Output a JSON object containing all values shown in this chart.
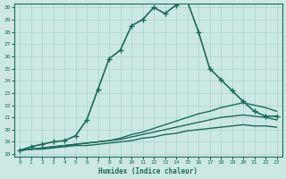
{
  "xlabel": "Humidex (Indice chaleur)",
  "ylabel": "",
  "bg_color": "#cce8e4",
  "grid_color": "#aad4ce",
  "line_color": "#1a6b5a",
  "xlim_min": -0.5,
  "xlim_max": 23.5,
  "ylim_min": 17.8,
  "ylim_max": 30.3,
  "yticks": [
    18,
    19,
    20,
    21,
    22,
    23,
    24,
    25,
    26,
    27,
    28,
    29,
    30
  ],
  "xticks": [
    0,
    1,
    2,
    3,
    4,
    5,
    6,
    7,
    8,
    9,
    10,
    11,
    12,
    13,
    14,
    15,
    16,
    17,
    18,
    19,
    20,
    21,
    22,
    23
  ],
  "lines": [
    {
      "x": [
        0,
        1,
        2,
        3,
        4,
        5,
        6,
        7,
        8,
        9,
        10,
        11,
        12,
        13,
        14,
        15,
        16,
        17,
        18,
        19,
        20,
        21,
        22,
        23
      ],
      "y": [
        18.3,
        18.6,
        18.8,
        19.0,
        19.1,
        19.5,
        20.8,
        23.3,
        25.8,
        26.5,
        28.5,
        29.0,
        30.0,
        29.5,
        30.2,
        30.5,
        28.0,
        25.0,
        24.1,
        23.2,
        22.3,
        21.5,
        21.1,
        21.1
      ],
      "marker": "+",
      "linewidth": 1.2,
      "markersize": 4,
      "markeredgewidth": 1.0
    },
    {
      "x": [
        0,
        1,
        2,
        3,
        4,
        5,
        6,
        7,
        8,
        9,
        10,
        11,
        12,
        13,
        14,
        15,
        16,
        17,
        18,
        19,
        20,
        21,
        22,
        23
      ],
      "y": [
        18.3,
        18.4,
        18.5,
        18.6,
        18.7,
        18.8,
        18.9,
        19.0,
        19.1,
        19.3,
        19.6,
        19.8,
        20.1,
        20.4,
        20.7,
        21.0,
        21.3,
        21.5,
        21.8,
        22.0,
        22.2,
        22.0,
        21.8,
        21.5
      ],
      "marker": null,
      "linewidth": 1.0,
      "markersize": 0
    },
    {
      "x": [
        0,
        1,
        2,
        3,
        4,
        5,
        6,
        7,
        8,
        9,
        10,
        11,
        12,
        13,
        14,
        15,
        16,
        17,
        18,
        19,
        20,
        21,
        22,
        23
      ],
      "y": [
        18.3,
        18.4,
        18.5,
        18.6,
        18.7,
        18.8,
        18.9,
        19.0,
        19.1,
        19.2,
        19.4,
        19.6,
        19.8,
        20.0,
        20.2,
        20.4,
        20.6,
        20.8,
        21.0,
        21.1,
        21.2,
        21.1,
        21.0,
        20.8
      ],
      "marker": null,
      "linewidth": 1.0,
      "markersize": 0
    },
    {
      "x": [
        0,
        1,
        2,
        3,
        4,
        5,
        6,
        7,
        8,
        9,
        10,
        11,
        12,
        13,
        14,
        15,
        16,
        17,
        18,
        19,
        20,
        21,
        22,
        23
      ],
      "y": [
        18.3,
        18.4,
        18.4,
        18.5,
        18.6,
        18.7,
        18.7,
        18.8,
        18.9,
        19.0,
        19.1,
        19.3,
        19.4,
        19.6,
        19.7,
        19.9,
        20.0,
        20.1,
        20.2,
        20.3,
        20.4,
        20.3,
        20.3,
        20.2
      ],
      "marker": null,
      "linewidth": 1.0,
      "markersize": 0
    }
  ]
}
